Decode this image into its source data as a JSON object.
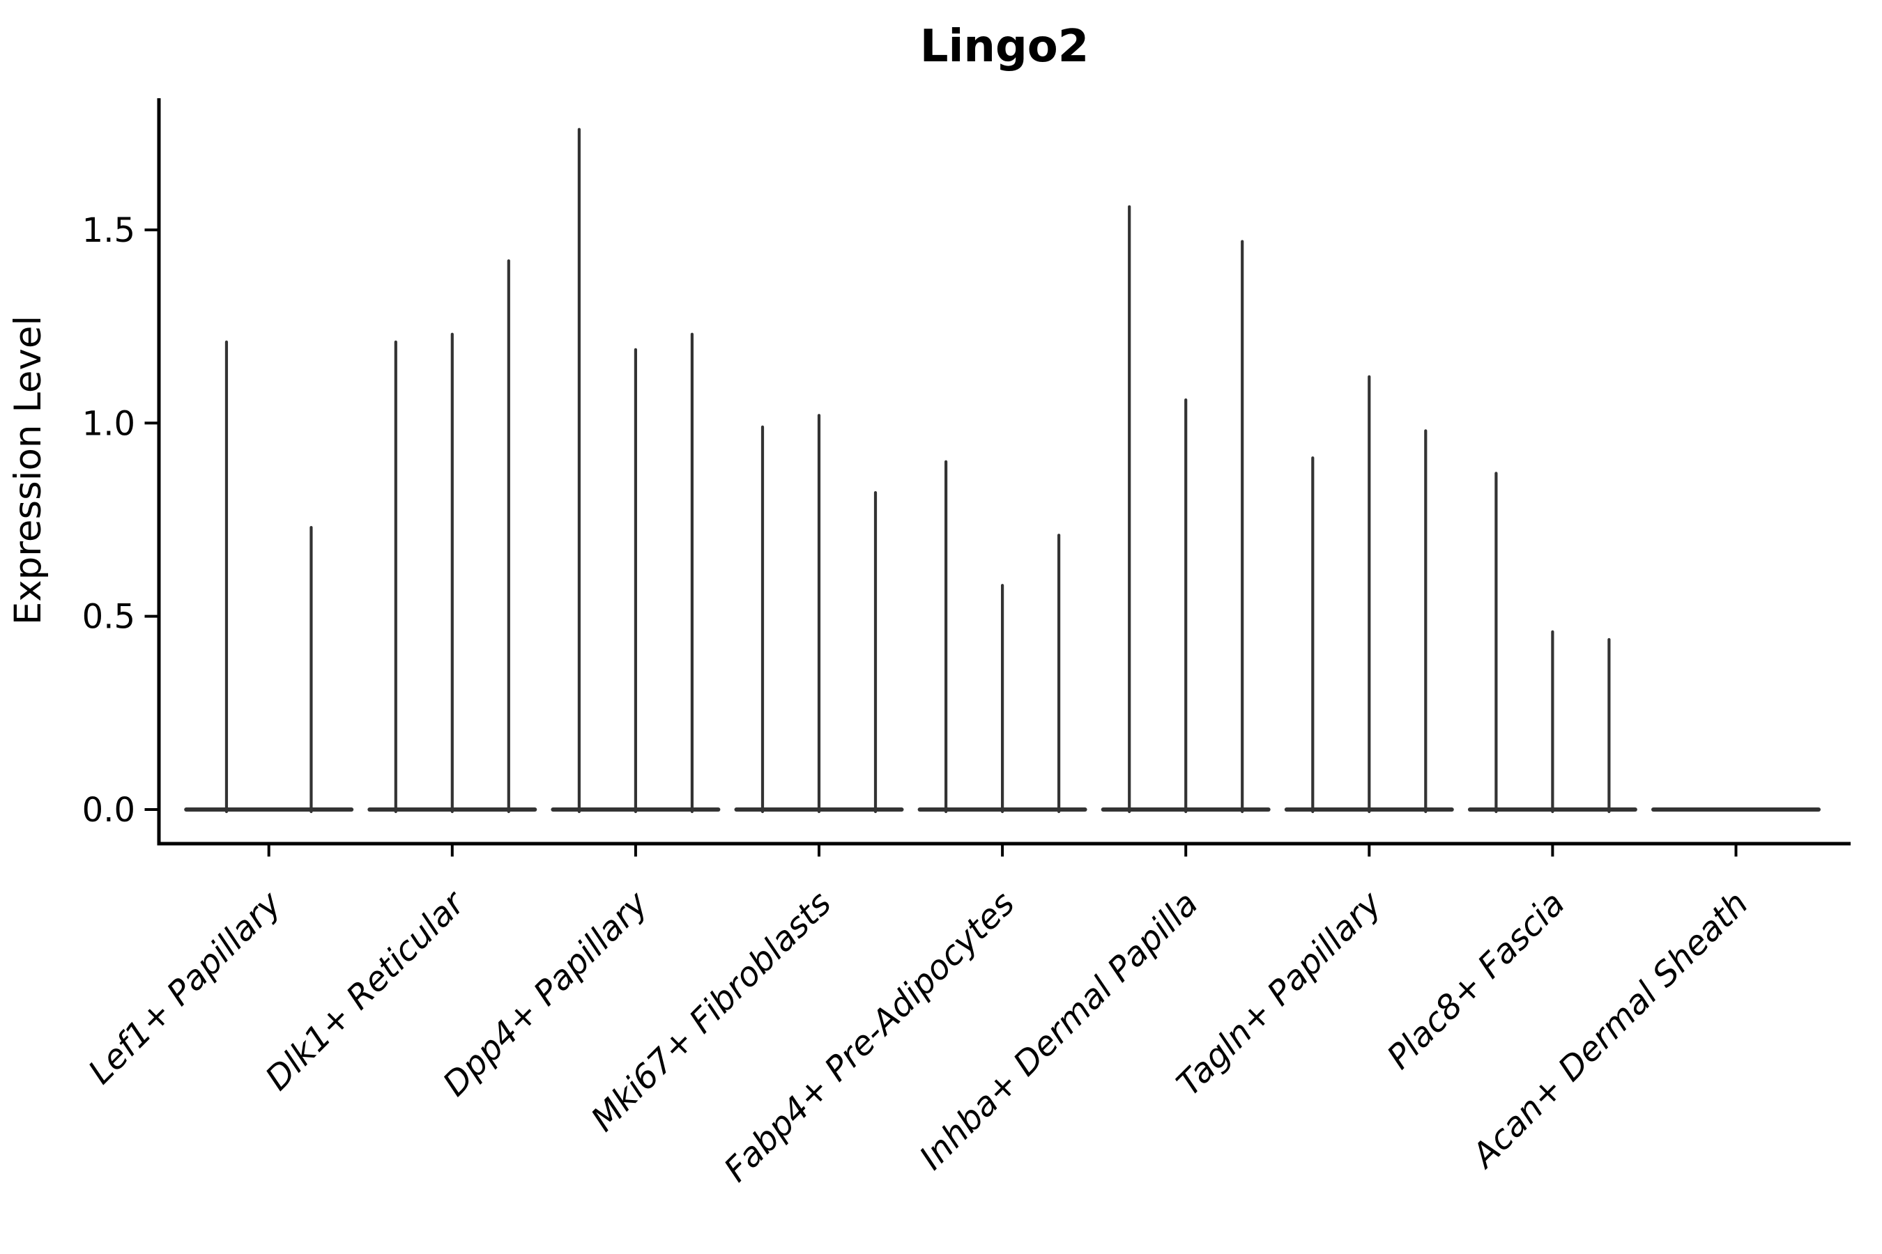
{
  "figure": {
    "background": "#ffffff"
  },
  "chart_data": {
    "type": "violin",
    "title": "Lingo2",
    "xlabel": "",
    "ylabel": "Expression Level",
    "ytick_labels": [
      "0.0",
      "0.5",
      "1.0",
      "1.5"
    ],
    "ytick_values": [
      0.0,
      0.5,
      1.0,
      1.5
    ],
    "ylim": [
      -0.12,
      1.85
    ],
    "grid": false,
    "legend": null,
    "colors": {
      "violin": "#333333",
      "axis": "#000000",
      "background": "#ffffff"
    },
    "note": "Sparse-expression violin plot: each violin collapses to a thin horizontal body at 0 with a narrow spike rising to that violin's maximum expression value.",
    "categories": [
      "Lef1+ Papillary",
      "Dlk1+ Reticular",
      "Dpp4+ Papillary",
      "Mki67+ Fibroblasts",
      "Fabp4+ Pre-Adipocytes",
      "Inhba+ Dermal Papilla",
      "Tagln+ Papillary",
      "Plac8+ Fascia",
      "Acan+ Dermal Sheath"
    ],
    "groups": [
      {
        "label": "Lef1+ Papillary",
        "spike_maxima": [
          1.21,
          0.73
        ]
      },
      {
        "label": "Dlk1+ Reticular",
        "spike_maxima": [
          1.21,
          1.23,
          1.42
        ]
      },
      {
        "label": "Dpp4+ Papillary",
        "spike_maxima": [
          1.76,
          1.19,
          1.23
        ]
      },
      {
        "label": "Mki67+ Fibroblasts",
        "spike_maxima": [
          0.99,
          1.02,
          0.82
        ]
      },
      {
        "label": "Fabp4+ Pre-Adipocytes",
        "spike_maxima": [
          0.9,
          0.58,
          0.71
        ]
      },
      {
        "label": "Inhba+ Dermal Papilla",
        "spike_maxima": [
          1.56,
          1.06,
          1.47
        ]
      },
      {
        "label": "Tagln+ Papillary",
        "spike_maxima": [
          0.91,
          1.12,
          0.98
        ]
      },
      {
        "label": "Plac8+ Fascia",
        "spike_maxima": [
          0.87,
          0.46,
          0.44
        ]
      },
      {
        "label": "Acan+ Dermal Sheath",
        "spike_maxima": [
          0,
          0,
          0
        ]
      }
    ]
  }
}
